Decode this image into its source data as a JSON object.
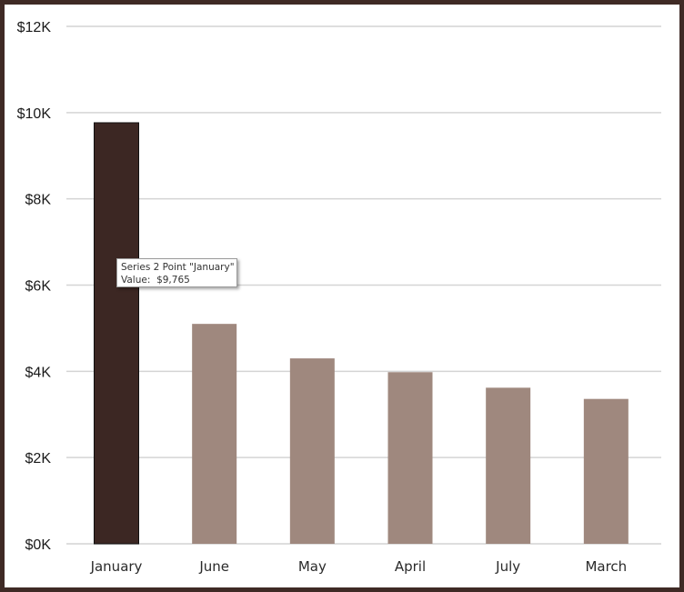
{
  "chart_data": {
    "type": "bar",
    "categories": [
      "January",
      "June",
      "May",
      "April",
      "July",
      "March"
    ],
    "series": [
      {
        "values": [
          9765,
          5100,
          4300,
          3980,
          3620,
          3360
        ],
        "colors": [
          "#3c2723",
          "#9f887e",
          "#9f887e",
          "#9f887e",
          "#9f887e",
          "#9f887e"
        ]
      }
    ],
    "ylim": [
      0,
      12000
    ],
    "yticks": [
      0,
      2000,
      4000,
      6000,
      8000,
      10000,
      12000
    ],
    "ytick_labels": [
      "$0K",
      "$2K",
      "$4K",
      "$6K",
      "$8K",
      "$10K",
      "$12K"
    ],
    "grid": true,
    "highlight_color": "#3c2723",
    "bar_color": "#9f887e",
    "tooltip": {
      "line1": "Series 2 Point \"January\"",
      "value_label": "Value:",
      "value": "$9,765"
    }
  },
  "frame_color": "#3f2a25"
}
